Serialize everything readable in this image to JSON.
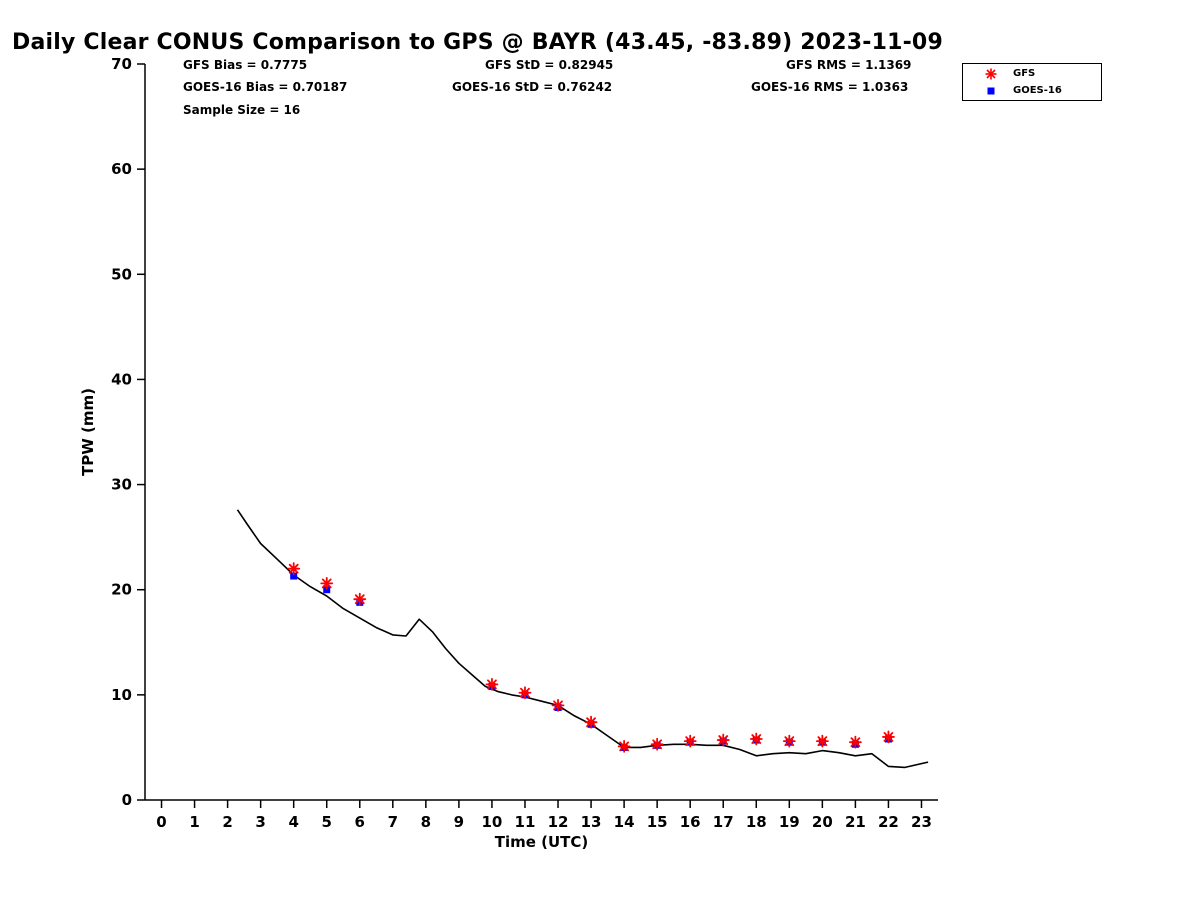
{
  "figure": {
    "stats": {
      "gfs_bias": "GFS Bias = 0.7775",
      "gfs_std": "GFS StD = 0.82945",
      "gfs_rms": "GFS RMS = 1.1369",
      "goes_bias": "GOES-16 Bias = 0.70187",
      "goes_std": "GOES-16 StD = 0.76242",
      "goes_rms": "GOES-16 RMS = 1.0363",
      "sample_size": "Sample Size = 16"
    },
    "legend": [
      {
        "label": "GFS",
        "marker": "asterisk",
        "color": "#ff0000"
      },
      {
        "label": "GOES-16",
        "marker": "square",
        "color": "#0000ff"
      }
    ]
  },
  "chart_data": {
    "type": "line",
    "title": "Daily Clear CONUS Comparison to GPS @ BAYR (43.45, -83.89) 2023-11-09",
    "xlabel": "Time (UTC)",
    "ylabel": "TPW (mm)",
    "xlim": [
      -0.5,
      23.5
    ],
    "ylim": [
      0,
      70
    ],
    "xticks": [
      0,
      1,
      2,
      3,
      4,
      5,
      6,
      7,
      8,
      9,
      10,
      11,
      12,
      13,
      14,
      15,
      16,
      17,
      18,
      19,
      20,
      21,
      22,
      23
    ],
    "yticks": [
      0,
      10,
      20,
      30,
      40,
      50,
      60,
      70
    ],
    "grid": false,
    "legend_position": "top-right",
    "series": [
      {
        "name": "GPS",
        "type": "line",
        "color": "#000000",
        "x": [
          2.3,
          2.6,
          3.0,
          3.5,
          4.0,
          4.5,
          5.0,
          5.5,
          6.0,
          6.5,
          7.0,
          7.4,
          7.8,
          8.2,
          8.6,
          9.0,
          9.4,
          9.8,
          10.2,
          10.6,
          11.0,
          11.5,
          12.0,
          12.5,
          13.0,
          13.5,
          14.0,
          14.5,
          15.0,
          15.5,
          16.0,
          16.5,
          17.0,
          17.5,
          18.0,
          18.5,
          19.0,
          19.5,
          20.0,
          20.5,
          21.0,
          21.5,
          22.0,
          22.5,
          23.2
        ],
        "y": [
          27.6,
          26.2,
          24.4,
          22.9,
          21.4,
          20.3,
          19.4,
          18.2,
          17.3,
          16.4,
          15.7,
          15.6,
          17.2,
          16.0,
          14.4,
          13.0,
          11.9,
          10.8,
          10.3,
          10.0,
          9.8,
          9.4,
          9.0,
          8.0,
          7.2,
          6.1,
          5.0,
          5.0,
          5.2,
          5.3,
          5.3,
          5.2,
          5.2,
          4.8,
          4.2,
          4.4,
          4.5,
          4.4,
          4.7,
          4.5,
          4.2,
          4.4,
          3.2,
          3.1,
          3.6
        ]
      },
      {
        "name": "GOES-16",
        "type": "scatter",
        "marker": "square",
        "color": "#0000ff",
        "x": [
          4,
          5,
          6,
          10,
          11,
          12,
          13,
          14,
          15,
          16,
          17,
          18,
          19,
          20,
          21,
          22
        ],
        "y": [
          21.3,
          20.0,
          18.8,
          10.8,
          10.0,
          8.8,
          7.2,
          5.0,
          5.2,
          5.5,
          5.6,
          5.7,
          5.5,
          5.5,
          5.3,
          5.8
        ]
      },
      {
        "name": "GFS",
        "type": "scatter",
        "marker": "asterisk",
        "color": "#ff0000",
        "x": [
          4,
          5,
          6,
          10,
          11,
          12,
          13,
          14,
          15,
          16,
          17,
          18,
          19,
          20,
          21,
          22
        ],
        "y": [
          22.0,
          20.6,
          19.1,
          11.0,
          10.2,
          9.0,
          7.4,
          5.1,
          5.3,
          5.6,
          5.7,
          5.8,
          5.6,
          5.6,
          5.5,
          6.0
        ]
      }
    ]
  }
}
